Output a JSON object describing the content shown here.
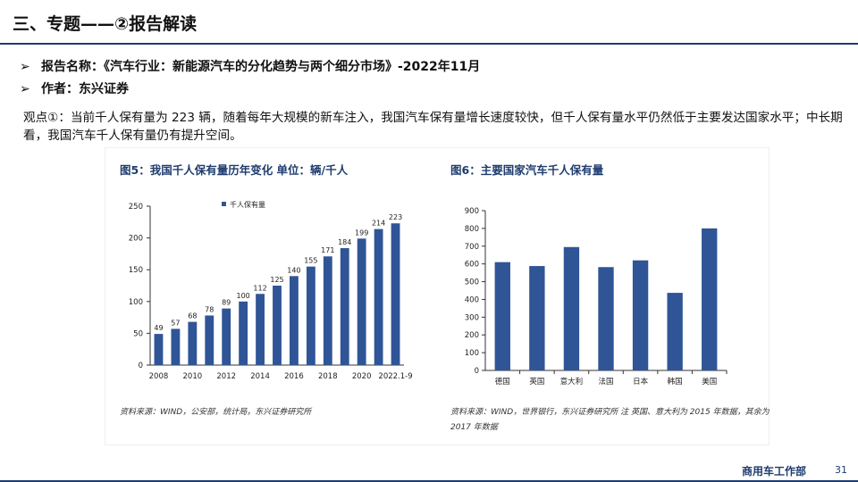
{
  "slide": {
    "title": "三、专题——②报告解读",
    "bullets": [
      {
        "arrow": "➢",
        "text": "报告名称：《汽车行业：新能源汽车的分化趋势与两个细分市场》-2022年11月"
      },
      {
        "arrow": "➢",
        "text": "作者：东兴证券"
      }
    ],
    "paragraph": "观点①：当前千人保有量为 223 辆，随着每年大规模的新车注入，我国汽车保有量增长速度较快，但千人保有量水平仍然低于主要发达国家水平；中长期看，我国汽车千人保有量仍有提升空间。",
    "footer_brand": "商用车工作部",
    "page_number": "31"
  },
  "chart_data": [
    {
      "type": "bar",
      "title": "图5：我国千人保有量历年变化   单位：辆/千人",
      "legend": "千人保有量",
      "legend_position": "top-left",
      "categories": [
        "2008",
        "2009",
        "2010",
        "2011",
        "2012",
        "2013",
        "2014",
        "2015",
        "2016",
        "2017",
        "2018",
        "2019",
        "2020",
        "2021",
        "2022.1-9"
      ],
      "tick_labels": [
        "2008",
        "2010",
        "2012",
        "2014",
        "2016",
        "2018",
        "2020",
        "2022.1-9"
      ],
      "values": [
        49,
        57,
        68,
        78,
        89,
        100,
        112,
        125,
        140,
        155,
        171,
        184,
        199,
        214,
        223
      ],
      "ylim": [
        0,
        250
      ],
      "yticks": [
        0,
        50,
        100,
        150,
        200,
        250
      ],
      "data_labels": true,
      "grid": false,
      "color": "#2f5597",
      "source": "资料来源：WIND，公安部，统计局，东兴证券研究所"
    },
    {
      "type": "bar",
      "title": "图6：主要国家汽车千人保有量",
      "categories": [
        "德国",
        "英国",
        "意大利",
        "法国",
        "日本",
        "韩国",
        "美国"
      ],
      "values": [
        610,
        588,
        695,
        582,
        620,
        437,
        800
      ],
      "ylim": [
        0,
        900
      ],
      "yticks": [
        0,
        100,
        200,
        300,
        400,
        500,
        600,
        700,
        800,
        900
      ],
      "data_labels": false,
      "grid": false,
      "color": "#2f5597",
      "source": "资料来源：WIND，世界银行，东兴证券研究所   注 英国、意大利为 2015 年数据，其余为 2017 年数据"
    }
  ]
}
